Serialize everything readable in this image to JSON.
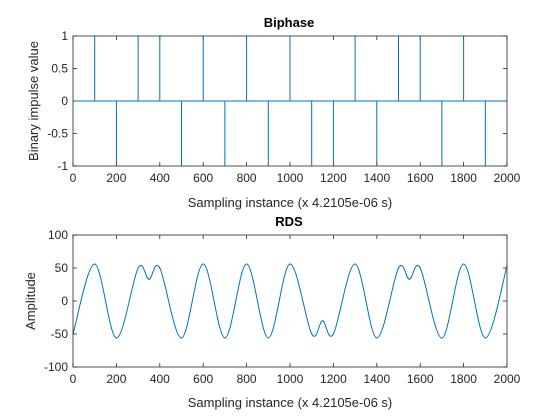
{
  "chart_data": [
    {
      "type": "line",
      "title": "Biphase",
      "xlabel": "Sampling instance (x 4.2105e-06 s)",
      "ylabel": "Binary impulse value",
      "xlim": [
        0,
        2000
      ],
      "ylim": [
        -1,
        1
      ],
      "x_ticks": [
        "0",
        "200",
        "400",
        "600",
        "800",
        "1000",
        "1200",
        "1400",
        "1600",
        "1800",
        "2000"
      ],
      "y_ticks": [
        "1",
        "0.5",
        "0",
        "-0.5",
        "-1"
      ],
      "color": "#0072BD",
      "impulses": [
        {
          "x": 100,
          "y": 1
        },
        {
          "x": 200,
          "y": -1
        },
        {
          "x": 300,
          "y": 1
        },
        {
          "x": 400,
          "y": 1
        },
        {
          "x": 500,
          "y": -1
        },
        {
          "x": 600,
          "y": 1
        },
        {
          "x": 700,
          "y": -1
        },
        {
          "x": 800,
          "y": 1
        },
        {
          "x": 900,
          "y": -1
        },
        {
          "x": 1000,
          "y": 1
        },
        {
          "x": 1100,
          "y": -1
        },
        {
          "x": 1200,
          "y": -1
        },
        {
          "x": 1300,
          "y": 1
        },
        {
          "x": 1400,
          "y": -1
        },
        {
          "x": 1500,
          "y": 1
        },
        {
          "x": 1600,
          "y": 1
        },
        {
          "x": 1700,
          "y": -1
        },
        {
          "x": 1800,
          "y": 1
        },
        {
          "x": 1900,
          "y": -1
        },
        {
          "x": 2000,
          "y": 0
        }
      ]
    },
    {
      "type": "line",
      "title": "RDS",
      "xlabel": "Sampling instance (x 4.2105e-06 s)",
      "ylabel": "Amplitude",
      "xlim": [
        0,
        2000
      ],
      "ylim": [
        -100,
        100
      ],
      "x_ticks": [
        "0",
        "200",
        "400",
        "600",
        "800",
        "1000",
        "1200",
        "1400",
        "1600",
        "1800",
        "2000"
      ],
      "y_ticks": [
        "100",
        "50",
        "0",
        "-50",
        "-100"
      ],
      "color": "#0072BD",
      "points": [
        {
          "x": 0,
          "y": -50
        },
        {
          "x": 100,
          "y": 56
        },
        {
          "x": 200,
          "y": -56
        },
        {
          "x": 300,
          "y": 50
        },
        {
          "x": 350,
          "y": 33
        },
        {
          "x": 400,
          "y": 50
        },
        {
          "x": 500,
          "y": -56
        },
        {
          "x": 600,
          "y": 56
        },
        {
          "x": 700,
          "y": -56
        },
        {
          "x": 800,
          "y": 56
        },
        {
          "x": 900,
          "y": -56
        },
        {
          "x": 1000,
          "y": 56
        },
        {
          "x": 1100,
          "y": -50
        },
        {
          "x": 1150,
          "y": -30
        },
        {
          "x": 1200,
          "y": -50
        },
        {
          "x": 1300,
          "y": 56
        },
        {
          "x": 1400,
          "y": -56
        },
        {
          "x": 1500,
          "y": 50
        },
        {
          "x": 1550,
          "y": 33
        },
        {
          "x": 1600,
          "y": 50
        },
        {
          "x": 1700,
          "y": -56
        },
        {
          "x": 1800,
          "y": 56
        },
        {
          "x": 1900,
          "y": -56
        },
        {
          "x": 2000,
          "y": 53
        }
      ]
    }
  ]
}
